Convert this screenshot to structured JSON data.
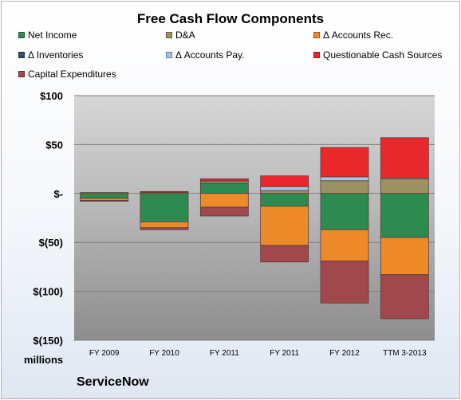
{
  "chart_data": {
    "type": "bar",
    "stacked": true,
    "title": "Free Cash Flow Components",
    "categories": [
      "FY 2009",
      "FY 2010",
      "FY 2011",
      "FY 2011",
      "FY 2012",
      "TTM 3-2013"
    ],
    "ylim": [
      -150,
      100
    ],
    "yticks": [
      100,
      50,
      0,
      -50,
      -100,
      -150
    ],
    "ytick_labels": [
      "$100",
      "$50",
      "$-",
      "$(50)",
      "$(100)",
      "$(150)"
    ],
    "units_label": "millions",
    "grid": true,
    "legend_position": "top",
    "series": [
      {
        "name": "Net Income",
        "color": "#2e8b4f",
        "values": [
          -5,
          -29,
          10,
          -13,
          -37,
          -45
        ]
      },
      {
        "name": "D&A",
        "color": "#9b9163",
        "values": [
          1,
          1,
          2,
          3,
          13,
          15
        ]
      },
      {
        "name": "Δ Accounts Rec.",
        "color": "#ed8a2a",
        "values": [
          -2,
          -6,
          -14,
          -40,
          -32,
          -38
        ]
      },
      {
        "name": "Δ Inventories",
        "color": "#2e4e6e",
        "values": [
          0,
          0,
          0,
          0,
          0,
          0
        ]
      },
      {
        "name": "Δ Accounts Pay.",
        "color": "#a9c3e4",
        "values": [
          0,
          0,
          1,
          4,
          4,
          1
        ]
      },
      {
        "name": "Questionable Cash Sources",
        "color": "#e8282b",
        "values": [
          0,
          1,
          2,
          11,
          30,
          41
        ]
      },
      {
        "name": "Capital Expenditures",
        "color": "#a0484c",
        "values": [
          -1,
          -2,
          -9,
          -17,
          -43,
          -45
        ]
      }
    ]
  },
  "footer": {
    "company": "ServiceNow"
  }
}
